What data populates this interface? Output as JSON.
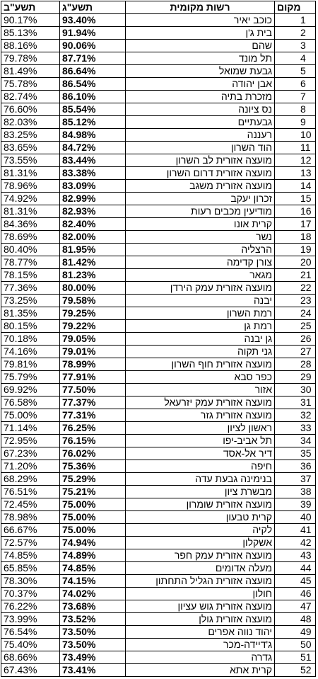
{
  "headers": {
    "prev_year": "תשע\"ב",
    "cur_year": "תשע\"ג",
    "authority": "רשות מקומית",
    "rank": "מקום"
  },
  "rows": [
    {
      "prev": "90.17%",
      "cur": "93.40%",
      "name": "כוכב יאיר",
      "rank": "1"
    },
    {
      "prev": "85.13%",
      "cur": "91.94%",
      "name": "בית ג'ן",
      "rank": "2"
    },
    {
      "prev": "88.16%",
      "cur": "90.06%",
      "name": "שהם",
      "rank": "3"
    },
    {
      "prev": "79.78%",
      "cur": "87.71%",
      "name": "תל מונד",
      "rank": "4"
    },
    {
      "prev": "81.49%",
      "cur": "86.64%",
      "name": "גבעת שמואל",
      "rank": "5"
    },
    {
      "prev": "75.78%",
      "cur": "86.54%",
      "name": "אבן יהודה",
      "rank": "6"
    },
    {
      "prev": "82.74%",
      "cur": "86.10%",
      "name": "מזכרת בתיה",
      "rank": "7"
    },
    {
      "prev": "76.60%",
      "cur": "85.54%",
      "name": "נס ציונה",
      "rank": "8"
    },
    {
      "prev": "82.03%",
      "cur": "85.12%",
      "name": "גבעתיים",
      "rank": "9"
    },
    {
      "prev": "83.25%",
      "cur": "84.98%",
      "name": "רעננה",
      "rank": "10"
    },
    {
      "prev": "83.65%",
      "cur": "84.72%",
      "name": "הוד השרון",
      "rank": "11"
    },
    {
      "prev": "73.55%",
      "cur": "83.44%",
      "name": "מועצה אזורית לב השרון",
      "rank": "12"
    },
    {
      "prev": "81.31%",
      "cur": "83.38%",
      "name": "מועצה אזורית דרום השרון",
      "rank": "13"
    },
    {
      "prev": "78.96%",
      "cur": "83.09%",
      "name": "מועצה אזורית משגב",
      "rank": "14"
    },
    {
      "prev": "74.92%",
      "cur": "82.99%",
      "name": "זכרון יעקב",
      "rank": "15"
    },
    {
      "prev": "81.31%",
      "cur": "82.93%",
      "name": "מודיעין מכבים רעות",
      "rank": "16"
    },
    {
      "prev": "84.36%",
      "cur": "82.40%",
      "name": "קרית אונו",
      "rank": "17"
    },
    {
      "prev": "78.69%",
      "cur": "82.00%",
      "name": "נשר",
      "rank": "18"
    },
    {
      "prev": "80.40%",
      "cur": "81.95%",
      "name": "הרצליה",
      "rank": "19"
    },
    {
      "prev": "78.77%",
      "cur": "81.42%",
      "name": "צורן קדימה",
      "rank": "20"
    },
    {
      "prev": "78.15%",
      "cur": "81.23%",
      "name": "מגאר",
      "rank": "21"
    },
    {
      "prev": "77.36%",
      "cur": "80.00%",
      "name": "מועצה אזורית עמק הירדן",
      "rank": "22"
    },
    {
      "prev": "73.25%",
      "cur": "79.58%",
      "name": "יבנה",
      "rank": "23"
    },
    {
      "prev": "81.35%",
      "cur": "79.25%",
      "name": "רמת השרון",
      "rank": "24"
    },
    {
      "prev": "80.15%",
      "cur": "79.22%",
      "name": "רמת גן",
      "rank": "25"
    },
    {
      "prev": "70.18%",
      "cur": "79.05%",
      "name": "גן יבנה",
      "rank": "26"
    },
    {
      "prev": "74.16%",
      "cur": "79.01%",
      "name": "גני תקוה",
      "rank": "27"
    },
    {
      "prev": "79.81%",
      "cur": "78.99%",
      "name": "מועצה אזורית חוף השרון",
      "rank": "28"
    },
    {
      "prev": "75.79%",
      "cur": "77.91%",
      "name": "כפר סבא",
      "rank": "29"
    },
    {
      "prev": "69.92%",
      "cur": "77.50%",
      "name": "אזור",
      "rank": "30"
    },
    {
      "prev": "76.58%",
      "cur": "77.37%",
      "name": "מועצה אזורית עמק יזרעאל",
      "rank": "31"
    },
    {
      "prev": "75.00%",
      "cur": "77.31%",
      "name": "מועצה אזורית גזר",
      "rank": "32"
    },
    {
      "prev": "71.14%",
      "cur": "76.25%",
      "name": "ראשון לציון",
      "rank": "33"
    },
    {
      "prev": "72.95%",
      "cur": "76.15%",
      "name": "תל אביב-יפו",
      "rank": "34"
    },
    {
      "prev": "67.23%",
      "cur": "76.02%",
      "name": "דיר אל-אסד",
      "rank": "35"
    },
    {
      "prev": "71.20%",
      "cur": "75.36%",
      "name": "חיפה",
      "rank": "36"
    },
    {
      "prev": "68.29%",
      "cur": "75.29%",
      "name": "בנימינה גבעת עדה",
      "rank": "37"
    },
    {
      "prev": "76.51%",
      "cur": "75.21%",
      "name": "מבשרת ציון",
      "rank": "38"
    },
    {
      "prev": "72.45%",
      "cur": "75.00%",
      "name": "מועצה אזורית שומרון",
      "rank": "39"
    },
    {
      "prev": "78.98%",
      "cur": "75.00%",
      "name": "קרית טבעון",
      "rank": "40"
    },
    {
      "prev": "66.67%",
      "cur": "75.00%",
      "name": "לקיה",
      "rank": "41"
    },
    {
      "prev": "72.57%",
      "cur": "74.94%",
      "name": "אשקלון",
      "rank": "42"
    },
    {
      "prev": "74.85%",
      "cur": "74.89%",
      "name": "מועצה אזורית עמק חפר",
      "rank": "43"
    },
    {
      "prev": "65.85%",
      "cur": "74.85%",
      "name": "מעלה אדומים",
      "rank": "44"
    },
    {
      "prev": "78.30%",
      "cur": "74.15%",
      "name": "מועצה אזורית הגליל התחתון",
      "rank": "45"
    },
    {
      "prev": "70.37%",
      "cur": "74.02%",
      "name": "חולון",
      "rank": "46"
    },
    {
      "prev": "76.22%",
      "cur": "73.68%",
      "name": "מועצה אזורית גוש עציון",
      "rank": "47"
    },
    {
      "prev": "73.99%",
      "cur": "73.52%",
      "name": "מועצה אזורית גולן",
      "rank": "48"
    },
    {
      "prev": "76.54%",
      "cur": "73.50%",
      "name": "יהוד נווה אפרים",
      "rank": "49"
    },
    {
      "prev": "75.40%",
      "cur": "73.50%",
      "name": "ג'דיידה-מכר",
      "rank": "50"
    },
    {
      "prev": "68.66%",
      "cur": "73.49%",
      "name": "גדרה",
      "rank": "51"
    },
    {
      "prev": "67.43%",
      "cur": "73.41%",
      "name": "קרית אתא",
      "rank": "52"
    }
  ]
}
